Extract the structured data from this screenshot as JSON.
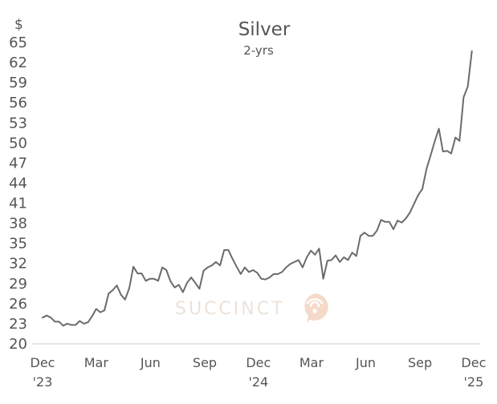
{
  "chart_data": {
    "type": "line",
    "title": "Silver",
    "subtitle": "2-yrs",
    "ylabel": "$",
    "xlabel": "",
    "ylim": [
      20,
      65
    ],
    "yticks": [
      20,
      23,
      26,
      29,
      32,
      35,
      38,
      41,
      44,
      47,
      50,
      53,
      56,
      59,
      62,
      65
    ],
    "xlim": [
      "2023-12-01",
      "2025-12-12"
    ],
    "xticks": [
      {
        "date": "2023-12-01",
        "label": "Dec",
        "year": "'23"
      },
      {
        "date": "2024-03-01",
        "label": "Mar",
        "year": ""
      },
      {
        "date": "2024-06-01",
        "label": "Jun",
        "year": ""
      },
      {
        "date": "2024-09-01",
        "label": "Sep",
        "year": ""
      },
      {
        "date": "2024-12-01",
        "label": "Dec",
        "year": "'24"
      },
      {
        "date": "2025-03-01",
        "label": "Mar",
        "year": ""
      },
      {
        "date": "2025-06-01",
        "label": "Jun",
        "year": ""
      },
      {
        "date": "2025-09-01",
        "label": "Sep",
        "year": ""
      },
      {
        "date": "2025-12-01",
        "label": "Dec",
        "year": "'25"
      }
    ],
    "grid": false,
    "line_color": "#6b6b6b",
    "series": [
      {
        "name": "",
        "points": [
          [
            "2023-12-01",
            23.8
          ],
          [
            "2023-12-08",
            24.1
          ],
          [
            "2023-12-15",
            23.8
          ],
          [
            "2023-12-22",
            23.2
          ],
          [
            "2023-12-29",
            23.2
          ],
          [
            "2024-01-05",
            22.6
          ],
          [
            "2024-01-12",
            22.9
          ],
          [
            "2024-01-19",
            22.7
          ],
          [
            "2024-01-26",
            22.7
          ],
          [
            "2024-02-02",
            23.3
          ],
          [
            "2024-02-09",
            22.9
          ],
          [
            "2024-02-16",
            23.1
          ],
          [
            "2024-02-23",
            24.0
          ],
          [
            "2024-03-01",
            25.1
          ],
          [
            "2024-03-08",
            24.6
          ],
          [
            "2024-03-15",
            24.9
          ],
          [
            "2024-03-22",
            27.4
          ],
          [
            "2024-03-29",
            27.9
          ],
          [
            "2024-04-05",
            28.6
          ],
          [
            "2024-04-12",
            27.2
          ],
          [
            "2024-04-19",
            26.5
          ],
          [
            "2024-04-26",
            28.2
          ],
          [
            "2024-05-03",
            31.4
          ],
          [
            "2024-05-10",
            30.4
          ],
          [
            "2024-05-17",
            30.4
          ],
          [
            "2024-05-24",
            29.3
          ],
          [
            "2024-05-31",
            29.6
          ],
          [
            "2024-06-07",
            29.6
          ],
          [
            "2024-06-14",
            29.3
          ],
          [
            "2024-06-21",
            31.3
          ],
          [
            "2024-06-28",
            30.9
          ],
          [
            "2024-07-05",
            29.2
          ],
          [
            "2024-07-12",
            28.3
          ],
          [
            "2024-07-19",
            28.7
          ],
          [
            "2024-07-26",
            27.6
          ],
          [
            "2024-08-02",
            29.0
          ],
          [
            "2024-08-09",
            29.8
          ],
          [
            "2024-08-16",
            29.0
          ],
          [
            "2024-08-23",
            28.1
          ],
          [
            "2024-08-30",
            30.8
          ],
          [
            "2024-09-06",
            31.3
          ],
          [
            "2024-09-13",
            31.6
          ],
          [
            "2024-09-20",
            32.1
          ],
          [
            "2024-09-27",
            31.6
          ],
          [
            "2024-10-04",
            33.9
          ],
          [
            "2024-10-11",
            33.9
          ],
          [
            "2024-10-18",
            32.6
          ],
          [
            "2024-10-25",
            31.4
          ],
          [
            "2024-11-01",
            30.3
          ],
          [
            "2024-11-08",
            31.3
          ],
          [
            "2024-11-15",
            30.6
          ],
          [
            "2024-11-22",
            30.9
          ],
          [
            "2024-11-29",
            30.5
          ],
          [
            "2024-12-06",
            29.6
          ],
          [
            "2024-12-13",
            29.5
          ],
          [
            "2024-12-20",
            29.8
          ],
          [
            "2024-12-27",
            30.3
          ],
          [
            "2025-01-03",
            30.3
          ],
          [
            "2025-01-10",
            30.6
          ],
          [
            "2025-01-17",
            31.3
          ],
          [
            "2025-01-24",
            31.8
          ],
          [
            "2025-01-31",
            32.1
          ],
          [
            "2025-02-07",
            32.4
          ],
          [
            "2025-02-14",
            31.3
          ],
          [
            "2025-02-21",
            32.8
          ],
          [
            "2025-02-28",
            33.8
          ],
          [
            "2025-03-07",
            33.2
          ],
          [
            "2025-03-14",
            34.1
          ],
          [
            "2025-03-21",
            29.6
          ],
          [
            "2025-03-28",
            32.3
          ],
          [
            "2025-04-04",
            32.4
          ],
          [
            "2025-04-11",
            33.1
          ],
          [
            "2025-04-18",
            32.1
          ],
          [
            "2025-04-25",
            32.8
          ],
          [
            "2025-05-02",
            32.4
          ],
          [
            "2025-05-09",
            33.5
          ],
          [
            "2025-05-16",
            33.0
          ],
          [
            "2025-05-23",
            36.0
          ],
          [
            "2025-05-30",
            36.5
          ],
          [
            "2025-06-06",
            36.0
          ],
          [
            "2025-06-13",
            36.0
          ],
          [
            "2025-06-20",
            36.8
          ],
          [
            "2025-06-27",
            38.4
          ],
          [
            "2025-07-04",
            38.1
          ],
          [
            "2025-07-11",
            38.1
          ],
          [
            "2025-07-18",
            37.0
          ],
          [
            "2025-07-25",
            38.3
          ],
          [
            "2025-08-01",
            38.0
          ],
          [
            "2025-08-08",
            38.6
          ],
          [
            "2025-08-15",
            39.5
          ],
          [
            "2025-08-22",
            40.8
          ],
          [
            "2025-08-29",
            42.1
          ],
          [
            "2025-09-05",
            43.0
          ],
          [
            "2025-09-12",
            46.0
          ],
          [
            "2025-09-19",
            48.0
          ],
          [
            "2025-09-26",
            50.1
          ],
          [
            "2025-10-03",
            52.0
          ],
          [
            "2025-10-10",
            48.6
          ],
          [
            "2025-10-17",
            48.7
          ],
          [
            "2025-10-24",
            48.3
          ],
          [
            "2025-10-31",
            50.7
          ],
          [
            "2025-11-07",
            50.2
          ],
          [
            "2025-11-14",
            56.7
          ],
          [
            "2025-11-21",
            58.3
          ],
          [
            "2025-11-28",
            63.6
          ]
        ]
      }
    ],
    "watermark": {
      "text": "SUCCINCT",
      "icon": "succinct-logo-icon",
      "color": "#f2cdb6"
    }
  }
}
